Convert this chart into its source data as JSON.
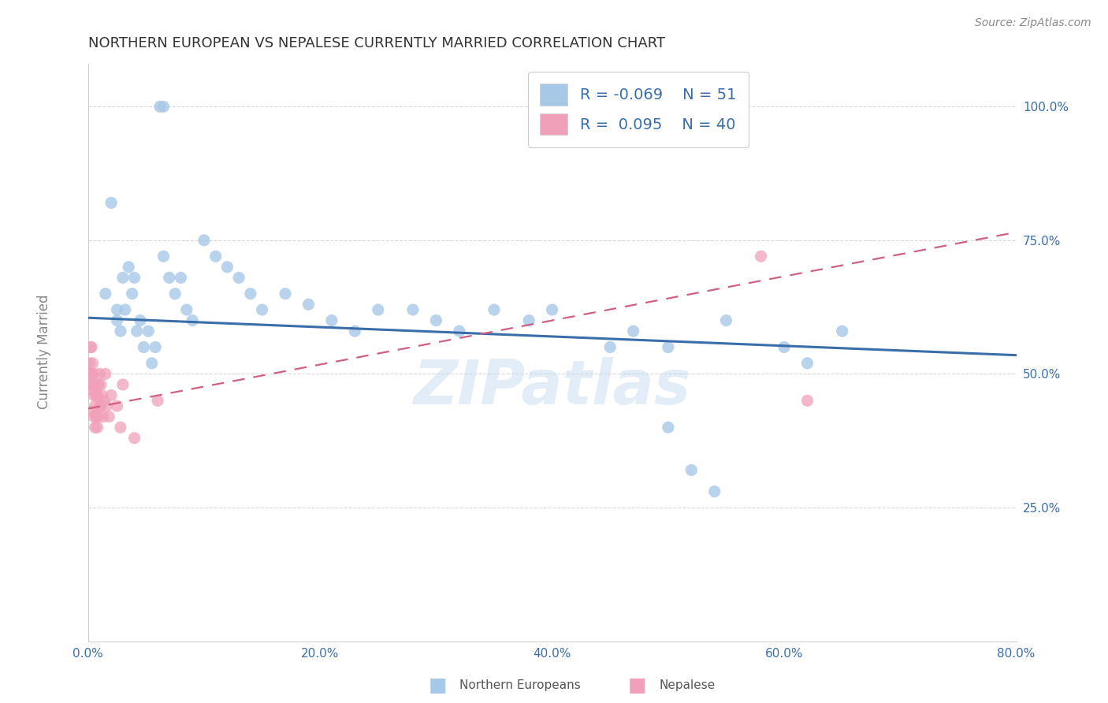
{
  "title": "NORTHERN EUROPEAN VS NEPALESE CURRENTLY MARRIED CORRELATION CHART",
  "source": "Source: ZipAtlas.com",
  "ylabel": "Currently Married",
  "watermark": "ZIPatlas",
  "legend_entries": [
    {
      "label": "Northern Europeans",
      "R": -0.069,
      "N": 51,
      "color": "#a8c8e8",
      "line_color": "#3a6ea8"
    },
    {
      "label": "Nepalese",
      "R": 0.095,
      "N": 40,
      "color": "#f0a0b8",
      "line_color": "#d06080"
    }
  ],
  "blue_x": [
    0.062,
    0.065,
    0.015,
    0.02,
    0.025,
    0.025,
    0.028,
    0.03,
    0.032,
    0.035,
    0.038,
    0.04,
    0.042,
    0.045,
    0.048,
    0.052,
    0.055,
    0.058,
    0.065,
    0.07,
    0.075,
    0.08,
    0.085,
    0.09,
    0.1,
    0.11,
    0.12,
    0.13,
    0.14,
    0.15,
    0.17,
    0.19,
    0.21,
    0.23,
    0.25,
    0.28,
    0.3,
    0.32,
    0.35,
    0.38,
    0.4,
    0.45,
    0.47,
    0.5,
    0.55,
    0.6,
    0.62,
    0.65,
    0.5,
    0.52,
    0.54
  ],
  "blue_y": [
    1.0,
    1.0,
    0.65,
    0.82,
    0.62,
    0.6,
    0.58,
    0.68,
    0.62,
    0.7,
    0.65,
    0.68,
    0.58,
    0.6,
    0.55,
    0.58,
    0.52,
    0.55,
    0.72,
    0.68,
    0.65,
    0.68,
    0.62,
    0.6,
    0.75,
    0.72,
    0.7,
    0.68,
    0.65,
    0.62,
    0.65,
    0.63,
    0.6,
    0.58,
    0.62,
    0.62,
    0.6,
    0.58,
    0.62,
    0.6,
    0.62,
    0.55,
    0.58,
    0.55,
    0.6,
    0.55,
    0.52,
    0.58,
    0.4,
    0.32,
    0.28
  ],
  "pink_x": [
    0.001,
    0.001,
    0.002,
    0.002,
    0.003,
    0.003,
    0.003,
    0.004,
    0.004,
    0.004,
    0.005,
    0.005,
    0.005,
    0.006,
    0.006,
    0.006,
    0.007,
    0.007,
    0.008,
    0.008,
    0.009,
    0.009,
    0.01,
    0.01,
    0.011,
    0.011,
    0.012,
    0.013,
    0.014,
    0.015,
    0.016,
    0.018,
    0.02,
    0.025,
    0.028,
    0.03,
    0.04,
    0.06,
    0.58,
    0.62
  ],
  "pink_y": [
    0.52,
    0.48,
    0.55,
    0.5,
    0.55,
    0.5,
    0.47,
    0.52,
    0.48,
    0.43,
    0.5,
    0.46,
    0.42,
    0.48,
    0.44,
    0.4,
    0.46,
    0.42,
    0.46,
    0.4,
    0.48,
    0.42,
    0.5,
    0.44,
    0.48,
    0.44,
    0.46,
    0.42,
    0.45,
    0.5,
    0.44,
    0.42,
    0.46,
    0.44,
    0.4,
    0.48,
    0.38,
    0.45,
    0.72,
    0.45
  ],
  "xlim": [
    0.0,
    0.8
  ],
  "ylim": [
    0.0,
    1.08
  ],
  "xticks": [
    0.0,
    0.2,
    0.4,
    0.6,
    0.8
  ],
  "yticks": [
    0.25,
    0.5,
    0.75,
    1.0
  ],
  "xtick_labels": [
    "0.0%",
    "20.0%",
    "40.0%",
    "60.0%",
    "80.0%"
  ],
  "ytick_labels": [
    "25.0%",
    "50.0%",
    "75.0%",
    "100.0%"
  ],
  "background_color": "#ffffff",
  "grid_color": "#d8d8d8",
  "title_color": "#333333",
  "axis_label_color": "#888888",
  "tick_color": "#3a6ea8",
  "marker_size": 120,
  "blue_line_y0": 0.605,
  "blue_line_y1": 0.535,
  "pink_line_y0": 0.435,
  "pink_line_y1": 0.765
}
